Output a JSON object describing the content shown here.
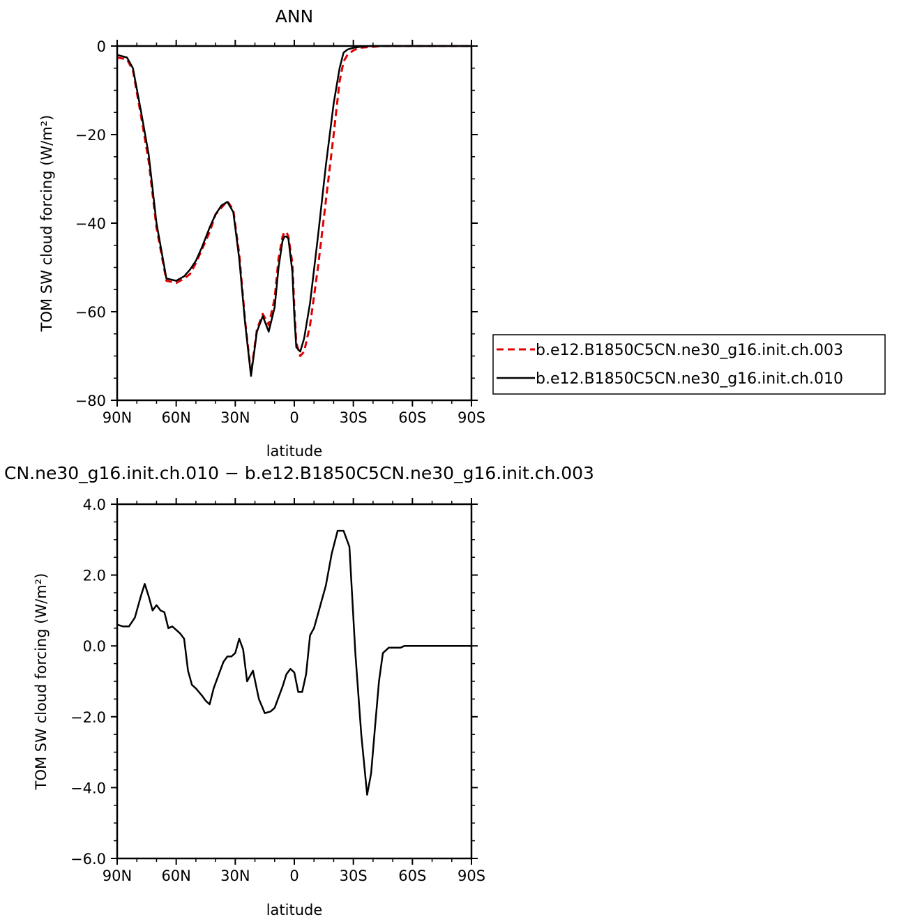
{
  "chart_data": [
    {
      "type": "line",
      "title": "ANN",
      "xlabel": "latitude",
      "ylabel": "TOM SW cloud forcing (W/m²)",
      "xlim": [
        -90,
        90
      ],
      "ylim": [
        -80,
        0
      ],
      "xticks": [
        -90,
        -60,
        -30,
        0,
        30,
        60,
        90
      ],
      "xtick_labels": [
        "90N",
        "60N",
        "30N",
        "0",
        "30S",
        "60S",
        "90S"
      ],
      "yticks": [
        0,
        -20,
        -40,
        -60,
        -80
      ],
      "ytick_labels": [
        "0",
        "−20",
        "−40",
        "−60",
        "−80"
      ],
      "legend_position": "right",
      "series": [
        {
          "name": "b.e12.B1850C5CN.ne30_g16.init.ch.003",
          "color": "#e00000",
          "dash": "dashed",
          "x": [
            -90,
            -85,
            -82,
            -78,
            -74,
            -70,
            -65,
            -60,
            -56,
            -53,
            -50,
            -47,
            -43,
            -40,
            -37,
            -34,
            -31,
            -28,
            -25,
            -22,
            -19,
            -16,
            -13,
            -10,
            -8,
            -6,
            -5,
            -4,
            -3,
            -1,
            0,
            1,
            3,
            5,
            8,
            12,
            16,
            20,
            23,
            25,
            27,
            30,
            33,
            36,
            39,
            42,
            45,
            48,
            51,
            54,
            56,
            58,
            60,
            62,
            64,
            66,
            68,
            70,
            72,
            74,
            76,
            78,
            80,
            85,
            90
          ],
          "y": [
            -2.6,
            -3.0,
            -5.5,
            -15.5,
            -26,
            -41,
            -53,
            -53.5,
            -52.5,
            -51.5,
            -49,
            -46,
            -42,
            -38,
            -36.5,
            -35,
            -37,
            -47,
            -62,
            -74,
            -64,
            -60.5,
            -63,
            -57,
            -48,
            -43,
            -42,
            -42,
            -43,
            -49,
            -59,
            -67,
            -70,
            -69,
            -63,
            -50,
            -35,
            -20,
            -8,
            -3.5,
            -2,
            -1,
            -0.4,
            -0.3,
            -0.2,
            -0.1,
            0,
            0,
            0,
            0,
            0,
            0,
            0,
            0,
            0,
            0,
            0,
            0,
            0,
            0,
            0,
            0,
            0,
            0,
            0
          ]
        },
        {
          "name": "b.e12.B1850C5CN.ne30_g16.init.ch.010",
          "color": "#000000",
          "dash": "solid",
          "x": [
            -90,
            -85,
            -82,
            -78,
            -74,
            -70,
            -65,
            -60,
            -56,
            -53,
            -50,
            -47,
            -43,
            -40,
            -37,
            -34,
            -31,
            -28,
            -25,
            -22,
            -19,
            -16,
            -13,
            -10,
            -8,
            -6,
            -5,
            -4,
            -3,
            -1,
            0,
            1,
            3,
            5,
            8,
            12,
            16,
            20,
            23,
            25,
            27,
            30,
            33,
            36,
            39,
            42,
            45,
            48,
            51,
            54,
            56,
            58,
            60,
            62,
            64,
            66,
            68,
            70,
            72,
            74,
            76,
            78,
            80,
            85,
            90
          ],
          "y": [
            -2.0,
            -2.6,
            -5.0,
            -14.5,
            -24.5,
            -40,
            -52.5,
            -53,
            -52,
            -50.5,
            -48.5,
            -45.5,
            -41,
            -38,
            -36,
            -35.2,
            -37.5,
            -48,
            -62.5,
            -74.5,
            -64.5,
            -61,
            -64.5,
            -59,
            -50,
            -44,
            -43,
            -43,
            -43.5,
            -51,
            -61,
            -68,
            -69,
            -66,
            -58,
            -43,
            -27,
            -13,
            -5,
            -1.5,
            -0.8,
            -0.4,
            -0.2,
            -0.1,
            0,
            0,
            0,
            0,
            0,
            0,
            0,
            0,
            0,
            0,
            0,
            0,
            0,
            0,
            0,
            0,
            0,
            0,
            0,
            0,
            0
          ]
        }
      ]
    },
    {
      "type": "line",
      "title": "CN.ne30_g16.init.ch.010 − b.e12.B1850C5CN.ne30_g16.init.ch.003",
      "xlabel": "latitude",
      "ylabel": "TOM SW cloud forcing (W/m²)",
      "xlim": [
        -90,
        90
      ],
      "ylim": [
        -6,
        4
      ],
      "xticks": [
        -90,
        -60,
        -30,
        0,
        30,
        60,
        90
      ],
      "xtick_labels": [
        "90N",
        "60N",
        "30N",
        "0",
        "30S",
        "60S",
        "90S"
      ],
      "yticks": [
        4,
        2,
        0,
        -2,
        -4,
        -6
      ],
      "ytick_labels": [
        "4.0",
        "2.0",
        "0.0",
        "−2.0",
        "−4.0",
        "−6.0"
      ],
      "series": [
        {
          "name": "",
          "color": "#000000",
          "dash": "solid",
          "x": [
            -90,
            -87,
            -84,
            -81,
            -78,
            -76,
            -74,
            -72,
            -70,
            -68,
            -66,
            -64,
            -62,
            -60,
            -58,
            -56,
            -54,
            -52,
            -50,
            -47,
            -45,
            -43,
            -41,
            -39,
            -36,
            -34,
            -32,
            -30,
            -28,
            -26,
            -24,
            -21,
            -18,
            -15,
            -12,
            -10,
            -8,
            -6,
            -4,
            -2,
            0,
            2,
            4,
            6,
            8,
            10,
            12,
            14,
            16,
            19,
            22,
            25,
            28,
            31,
            34,
            37,
            39,
            41,
            43,
            45,
            48,
            51,
            54,
            56,
            58,
            59,
            61,
            63,
            65,
            67,
            69,
            71,
            73,
            75,
            77,
            80,
            85,
            90
          ],
          "y": [
            0.6,
            0.55,
            0.55,
            0.8,
            1.4,
            1.75,
            1.4,
            1.0,
            1.15,
            1.0,
            0.95,
            0.5,
            0.55,
            0.45,
            0.35,
            0.2,
            -0.7,
            -1.1,
            -1.2,
            -1.4,
            -1.55,
            -1.65,
            -1.2,
            -0.9,
            -0.45,
            -0.3,
            -0.3,
            -0.2,
            0.2,
            -0.1,
            -1.0,
            -0.7,
            -1.5,
            -1.9,
            -1.85,
            -1.75,
            -1.45,
            -1.15,
            -0.8,
            -0.65,
            -0.75,
            -1.3,
            -1.3,
            -0.8,
            0.3,
            0.5,
            0.9,
            1.3,
            1.7,
            2.6,
            3.25,
            3.25,
            2.8,
            -0.2,
            -2.5,
            -4.2,
            -3.6,
            -2.3,
            -1.0,
            -0.2,
            -0.05,
            -0.05,
            -0.05,
            0,
            0,
            0,
            0,
            0,
            0,
            0,
            0,
            0,
            0,
            0,
            0,
            0,
            0,
            0
          ]
        }
      ]
    }
  ]
}
